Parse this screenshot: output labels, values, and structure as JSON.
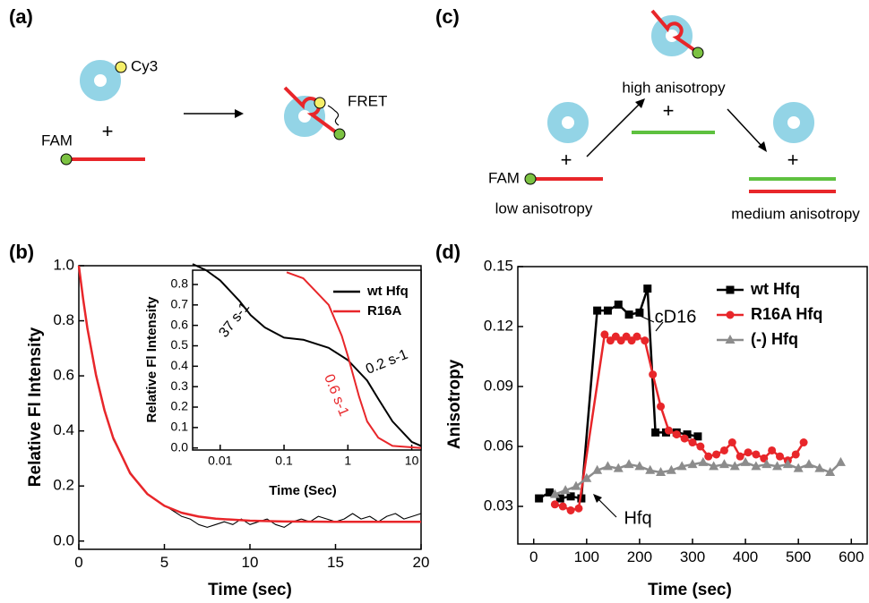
{
  "panel_a": {
    "label": "(a)",
    "dye": "Cy3",
    "plus": "+",
    "donor": "FAM",
    "signal": "FRET"
  },
  "panel_c": {
    "label": "(c)",
    "top_state": "high anisotropy",
    "plus_top": "+",
    "donor": "FAM",
    "plus_left": "+",
    "left_state": "low anisotropy",
    "plus_right": "+",
    "right_state": "medium anisotropy"
  },
  "chart_data": [
    {
      "type": "line",
      "panel_label": "(b)",
      "x_label": "Time (sec)",
      "y_label": "Relative Fl Intensity",
      "xlim": [
        0,
        20
      ],
      "xticks": [
        0,
        5,
        10,
        15,
        20
      ],
      "ylim": [
        -0.03,
        1.0
      ],
      "yticks": [
        {
          "value": 0,
          "label": "0.0"
        },
        0.2,
        0.4,
        0.6,
        0.8,
        {
          "value": 1,
          "label": "1.0"
        }
      ],
      "series": [
        {
          "color": "#000000",
          "x": [
            0,
            0.5,
            1,
            1.5,
            2,
            2.5,
            3,
            3.5,
            4,
            4.5,
            5,
            5.5,
            6,
            6.5,
            7,
            7.5,
            8,
            8.5,
            9,
            9.5,
            10,
            10.5,
            11,
            11.5,
            12,
            12.5,
            13,
            13.5,
            14,
            14.5,
            15,
            15.5,
            16,
            16.5,
            17,
            17.5,
            18,
            18.5,
            19,
            19.5,
            20
          ],
          "values": [
            0.98,
            0.78,
            0.61,
            0.48,
            0.37,
            0.31,
            0.25,
            0.21,
            0.17,
            0.15,
            0.13,
            0.11,
            0.09,
            0.08,
            0.06,
            0.05,
            0.06,
            0.07,
            0.06,
            0.08,
            0.06,
            0.07,
            0.08,
            0.06,
            0.05,
            0.07,
            0.08,
            0.07,
            0.09,
            0.08,
            0.07,
            0.08,
            0.1,
            0.08,
            0.09,
            0.07,
            0.09,
            0.1,
            0.08,
            0.09,
            0.1
          ]
        },
        {
          "color": "#e8262a",
          "x": [
            0,
            0.25,
            0.5,
            1,
            1.5,
            2,
            3,
            4,
            5,
            6,
            7,
            8,
            10,
            12,
            15,
            20
          ],
          "values": [
            1.0,
            0.879,
            0.774,
            0.604,
            0.474,
            0.376,
            0.246,
            0.171,
            0.128,
            0.103,
            0.089,
            0.081,
            0.074,
            0.071,
            0.07,
            0.07
          ]
        }
      ]
    },
    {
      "type": "line",
      "x_label": "Time (Sec)",
      "y_label": "Relative Fl Intensity",
      "xscale": "log",
      "xlim": [
        0.0037,
        14
      ],
      "xticks": [
        0.01,
        0.1,
        1,
        10
      ],
      "ylim": [
        -0.01,
        0.87
      ],
      "yticks": [
        {
          "value": 0,
          "label": "0.0"
        },
        0.1,
        0.2,
        0.3,
        0.4,
        0.5,
        0.6,
        0.7,
        0.8
      ],
      "legend": "upper right",
      "series": [
        {
          "name": "wt Hfq",
          "color": "#000000",
          "x": [
            0.0037,
            0.006,
            0.01,
            0.02,
            0.03,
            0.05,
            0.1,
            0.2,
            0.5,
            1,
            2,
            3,
            5,
            10,
            14
          ],
          "values": [
            0.9,
            0.87,
            0.82,
            0.72,
            0.65,
            0.59,
            0.54,
            0.53,
            0.49,
            0.43,
            0.33,
            0.24,
            0.13,
            0.03,
            0.01
          ]
        },
        {
          "name": "R16A",
          "color": "#e8262a",
          "x": [
            0.11,
            0.2,
            0.5,
            0.8,
            1,
            1.5,
            2,
            3,
            5,
            14
          ],
          "values": [
            0.86,
            0.83,
            0.7,
            0.55,
            0.45,
            0.25,
            0.13,
            0.05,
            0.01,
            0.0
          ]
        }
      ],
      "annotations": [
        {
          "text": "37 s-1",
          "color": "#000000"
        },
        {
          "text": "0.2 s-1",
          "color": "#000000"
        },
        {
          "text": "0.6 s-1",
          "color": "#e8262a"
        }
      ]
    },
    {
      "type": "line",
      "panel_label": "(d)",
      "x_label": "Time (sec)",
      "y_label": "Anisotropy",
      "xlim": [
        -30,
        630
      ],
      "xticks": [
        0,
        100,
        200,
        300,
        400,
        500,
        600
      ],
      "ylim": [
        0.0112,
        0.15
      ],
      "yticks": [
        0.03,
        0.06,
        0.09,
        0.12,
        0.15
      ],
      "legend": "upper right",
      "series": [
        {
          "name": "wt Hfq",
          "color": "#000000",
          "marker": "square",
          "x": [
            10,
            30,
            50,
            70,
            90,
            120,
            140,
            160,
            180,
            200,
            215,
            230,
            250,
            270,
            290,
            310
          ],
          "values": [
            0.034,
            0.037,
            0.034,
            0.035,
            0.034,
            0.128,
            0.128,
            0.131,
            0.126,
            0.127,
            0.139,
            0.067,
            0.067,
            0.067,
            0.066,
            0.065
          ]
        },
        {
          "name": "R16A Hfq",
          "color": "#e8262a",
          "marker": "circle",
          "x": [
            40,
            55,
            70,
            85,
            134,
            145,
            155,
            165,
            175,
            185,
            195,
            210,
            225,
            240,
            255,
            270,
            285,
            300,
            315,
            330,
            345,
            360,
            375,
            390,
            405,
            420,
            435,
            450,
            465,
            480,
            495,
            510
          ],
          "values": [
            0.031,
            0.03,
            0.028,
            0.029,
            0.116,
            0.113,
            0.115,
            0.113,
            0.115,
            0.113,
            0.115,
            0.113,
            0.096,
            0.08,
            0.068,
            0.066,
            0.064,
            0.062,
            0.06,
            0.055,
            0.056,
            0.058,
            0.062,
            0.055,
            0.057,
            0.056,
            0.054,
            0.058,
            0.055,
            0.053,
            0.056,
            0.062
          ]
        },
        {
          "name": "(-) Hfq",
          "color": "#8c8c8c",
          "marker": "triangle",
          "x": [
            40,
            60,
            80,
            100,
            120,
            140,
            160,
            180,
            200,
            220,
            240,
            260,
            280,
            300,
            320,
            340,
            360,
            380,
            400,
            420,
            440,
            460,
            480,
            500,
            520,
            540,
            560,
            580
          ],
          "values": [
            0.036,
            0.038,
            0.04,
            0.044,
            0.048,
            0.05,
            0.049,
            0.051,
            0.05,
            0.048,
            0.047,
            0.048,
            0.05,
            0.051,
            0.052,
            0.05,
            0.051,
            0.05,
            0.052,
            0.05,
            0.051,
            0.05,
            0.051,
            0.049,
            0.051,
            0.049,
            0.047,
            0.052
          ]
        }
      ],
      "annotations": [
        {
          "text": "cD16",
          "color": "#000000"
        },
        {
          "text": "Hfq",
          "color": "#000000"
        }
      ]
    }
  ]
}
